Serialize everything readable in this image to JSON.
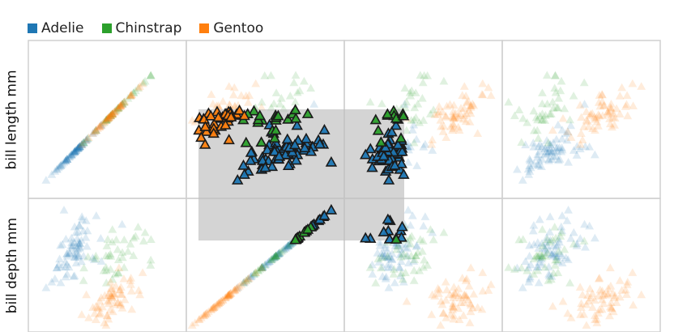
{
  "legend": [
    {
      "label": "Adelie",
      "color": "#1f77b4"
    },
    {
      "label": "Chinstrap",
      "color": "#2ca02c"
    },
    {
      "label": "Gentoo",
      "color": "#ff7f0e"
    }
  ],
  "chart_data": {
    "type": "scatter",
    "matrix_variables": [
      "bill length mm",
      "bill depth mm"
    ],
    "visible_row_labels": [
      "bill length mm",
      "bill depth mm"
    ],
    "columns_visible": 4,
    "marker": "triangle",
    "legend_position": "top-left",
    "grid": true,
    "brush_selection": {
      "panel": "row 1, column 2",
      "extends_into_column": 3
    },
    "series": [
      {
        "name": "Adelie",
        "color": "#1f77b4"
      },
      {
        "name": "Chinstrap",
        "color": "#2ca02c"
      },
      {
        "name": "Gentoo",
        "color": "#ff7f0e"
      }
    ]
  }
}
